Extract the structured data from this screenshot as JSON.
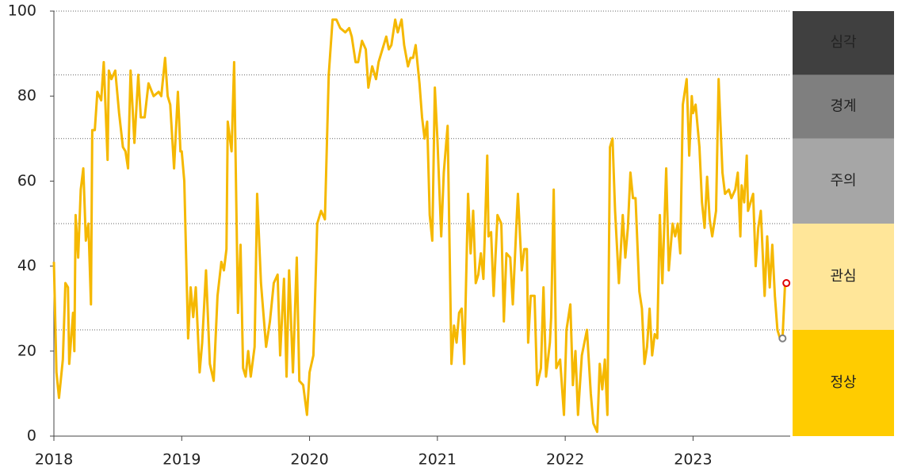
{
  "chart_data": {
    "type": "line",
    "color": "#F5B800",
    "xlim": [
      2018,
      2023.76
    ],
    "xticks": [
      2018,
      2019,
      2020,
      2021,
      2022,
      2023
    ],
    "ylim": [
      0,
      100
    ],
    "yticks": [
      0,
      20,
      40,
      60,
      80,
      100
    ],
    "x": [
      2018.0,
      2018.02,
      2018.04,
      2018.07,
      2018.09,
      2018.11,
      2018.12,
      2018.15,
      2018.16,
      2018.17,
      2018.19,
      2018.21,
      2018.23,
      2018.25,
      2018.27,
      2018.29,
      2018.3,
      2018.32,
      2018.34,
      2018.37,
      2018.39,
      2018.42,
      2018.43,
      2018.45,
      2018.48,
      2018.51,
      2018.54,
      2018.56,
      2018.58,
      2018.6,
      2018.63,
      2018.66,
      2018.68,
      2018.71,
      2018.74,
      2018.78,
      2018.82,
      2018.84,
      2018.87,
      2018.89,
      2018.91,
      2018.94,
      2018.97,
      2018.99,
      2019.0,
      2019.02,
      2019.05,
      2019.07,
      2019.09,
      2019.11,
      2019.14,
      2019.16,
      2019.19,
      2019.22,
      2019.25,
      2019.28,
      2019.31,
      2019.33,
      2019.35,
      2019.36,
      2019.39,
      2019.41,
      2019.44,
      2019.46,
      2019.48,
      2019.5,
      2019.52,
      2019.54,
      2019.57,
      2019.59,
      2019.62,
      2019.66,
      2019.69,
      2019.72,
      2019.75,
      2019.77,
      2019.8,
      2019.82,
      2019.84,
      2019.87,
      2019.9,
      2019.92,
      2019.95,
      2019.98,
      2020.0,
      2020.03,
      2020.06,
      2020.09,
      2020.12,
      2020.15,
      2020.18,
      2020.21,
      2020.24,
      2020.28,
      2020.31,
      2020.33,
      2020.36,
      2020.38,
      2020.41,
      2020.44,
      2020.46,
      2020.49,
      2020.52,
      2020.54,
      2020.57,
      2020.6,
      2020.62,
      2020.64,
      2020.67,
      2020.69,
      2020.72,
      2020.74,
      2020.77,
      2020.79,
      2020.81,
      2020.83,
      2020.86,
      2020.88,
      2020.9,
      2020.92,
      2020.94,
      2020.96,
      2020.98,
      2021.0,
      2021.03,
      2021.05,
      2021.08,
      2021.11,
      2021.13,
      2021.15,
      2021.17,
      2021.19,
      2021.21,
      2021.24,
      2021.26,
      2021.28,
      2021.3,
      2021.32,
      2021.34,
      2021.36,
      2021.39,
      2021.4,
      2021.42,
      2021.44,
      2021.47,
      2021.5,
      2021.52,
      2021.54,
      2021.57,
      2021.59,
      2021.62,
      2021.63,
      2021.66,
      2021.68,
      2021.7,
      2021.71,
      2021.73,
      2021.76,
      2021.78,
      2021.81,
      2021.83,
      2021.85,
      2021.88,
      2021.89,
      2021.91,
      2021.93,
      2021.96,
      2021.99,
      2022.01,
      2022.04,
      2022.06,
      2022.08,
      2022.1,
      2022.13,
      2022.17,
      2022.2,
      2022.22,
      2022.25,
      2022.27,
      2022.29,
      2022.31,
      2022.33,
      2022.35,
      2022.37,
      2022.39,
      2022.42,
      2022.45,
      2022.47,
      2022.49,
      2022.51,
      2022.53,
      2022.55,
      2022.58,
      2022.6,
      2022.62,
      2022.64,
      2022.66,
      2022.68,
      2022.7,
      2022.72,
      2022.74,
      2022.76,
      2022.79,
      2022.81,
      2022.84,
      2022.86,
      2022.88,
      2022.9,
      2022.92,
      2022.95,
      2022.97,
      2022.99,
      2023.0,
      2023.02,
      2023.05,
      2023.07,
      2023.09,
      2023.11,
      2023.13,
      2023.15,
      2023.18,
      2023.2,
      2023.23,
      2023.25,
      2023.28,
      2023.3,
      2023.33,
      2023.35,
      2023.37,
      2023.38,
      2023.4,
      2023.42,
      2023.43,
      2023.45,
      2023.47,
      2023.49,
      2023.51,
      2023.53,
      2023.56,
      2023.58,
      2023.6,
      2023.62,
      2023.64,
      2023.66,
      2023.68,
      2023.7,
      2023.72
    ],
    "values": [
      41,
      15,
      9,
      18,
      36,
      35,
      17,
      29,
      20,
      52,
      42,
      58,
      63,
      46,
      50,
      31,
      72,
      72,
      81,
      79,
      88,
      65,
      86,
      84,
      86,
      76,
      68,
      67,
      63,
      86,
      69,
      85,
      75,
      75,
      83,
      80,
      81,
      80,
      89,
      80,
      78,
      63,
      81,
      67,
      67,
      60,
      23,
      35,
      28,
      35,
      15,
      22,
      39,
      17,
      13,
      33,
      41,
      39,
      44,
      74,
      67,
      88,
      29,
      45,
      16,
      14,
      20,
      14,
      21,
      57,
      36,
      21,
      27,
      36,
      38,
      19,
      37,
      14,
      39,
      15,
      42,
      13,
      12,
      5,
      15,
      19,
      50,
      53,
      51,
      85,
      98,
      98,
      96,
      95,
      96,
      94,
      88,
      88,
      93,
      91,
      82,
      87,
      84,
      88,
      91,
      94,
      91,
      92,
      98,
      95,
      98,
      92,
      87,
      89,
      89,
      92,
      83,
      75,
      70,
      74,
      52,
      46,
      82,
      70,
      47,
      62,
      73,
      17,
      26,
      22,
      29,
      30,
      17,
      57,
      43,
      53,
      36,
      38,
      43,
      37,
      66,
      47,
      48,
      33,
      52,
      50,
      27,
      43,
      42,
      31,
      51,
      57,
      39,
      44,
      44,
      22,
      33,
      33,
      12,
      16,
      35,
      14,
      22,
      28,
      58,
      16,
      18,
      5,
      25,
      31,
      12,
      20,
      5,
      19,
      25,
      10,
      3,
      1,
      17,
      11,
      18,
      5,
      68,
      70,
      53,
      36,
      52,
      42,
      49,
      62,
      56,
      56,
      34,
      30,
      17,
      21,
      30,
      19,
      24,
      23,
      52,
      36,
      63,
      39,
      50,
      47,
      50,
      43,
      78,
      84,
      66,
      80,
      76,
      78,
      68,
      55,
      49,
      61,
      51,
      47,
      53,
      84,
      62,
      57,
      58,
      56,
      58,
      62,
      47,
      59,
      55,
      66,
      53,
      55,
      57,
      40,
      49,
      53,
      33,
      47,
      35,
      45,
      33,
      25,
      23,
      23,
      36
    ],
    "markers": [
      {
        "x": 2023.7,
        "value": 23,
        "color": "#808080"
      },
      {
        "x": 2023.73,
        "value": 36,
        "color": "#E00000"
      }
    ],
    "bands": [
      {
        "label": "정상",
        "from": 0,
        "to": 25,
        "color": "#FFCC00",
        "text_color": "#222222"
      },
      {
        "label": "관심",
        "from": 25,
        "to": 50,
        "color": "#FFE699",
        "text_color": "#222222"
      },
      {
        "label": "주의",
        "from": 50,
        "to": 70,
        "color": "#A6A6A6",
        "text_color": "#222222"
      },
      {
        "label": "경계",
        "from": 70,
        "to": 85,
        "color": "#7F7F7F",
        "text_color": "#F2F2F2"
      },
      {
        "label": "심각",
        "from": 85,
        "to": 100,
        "color": "#404040",
        "text_color": "#F2F2F2"
      }
    ]
  }
}
